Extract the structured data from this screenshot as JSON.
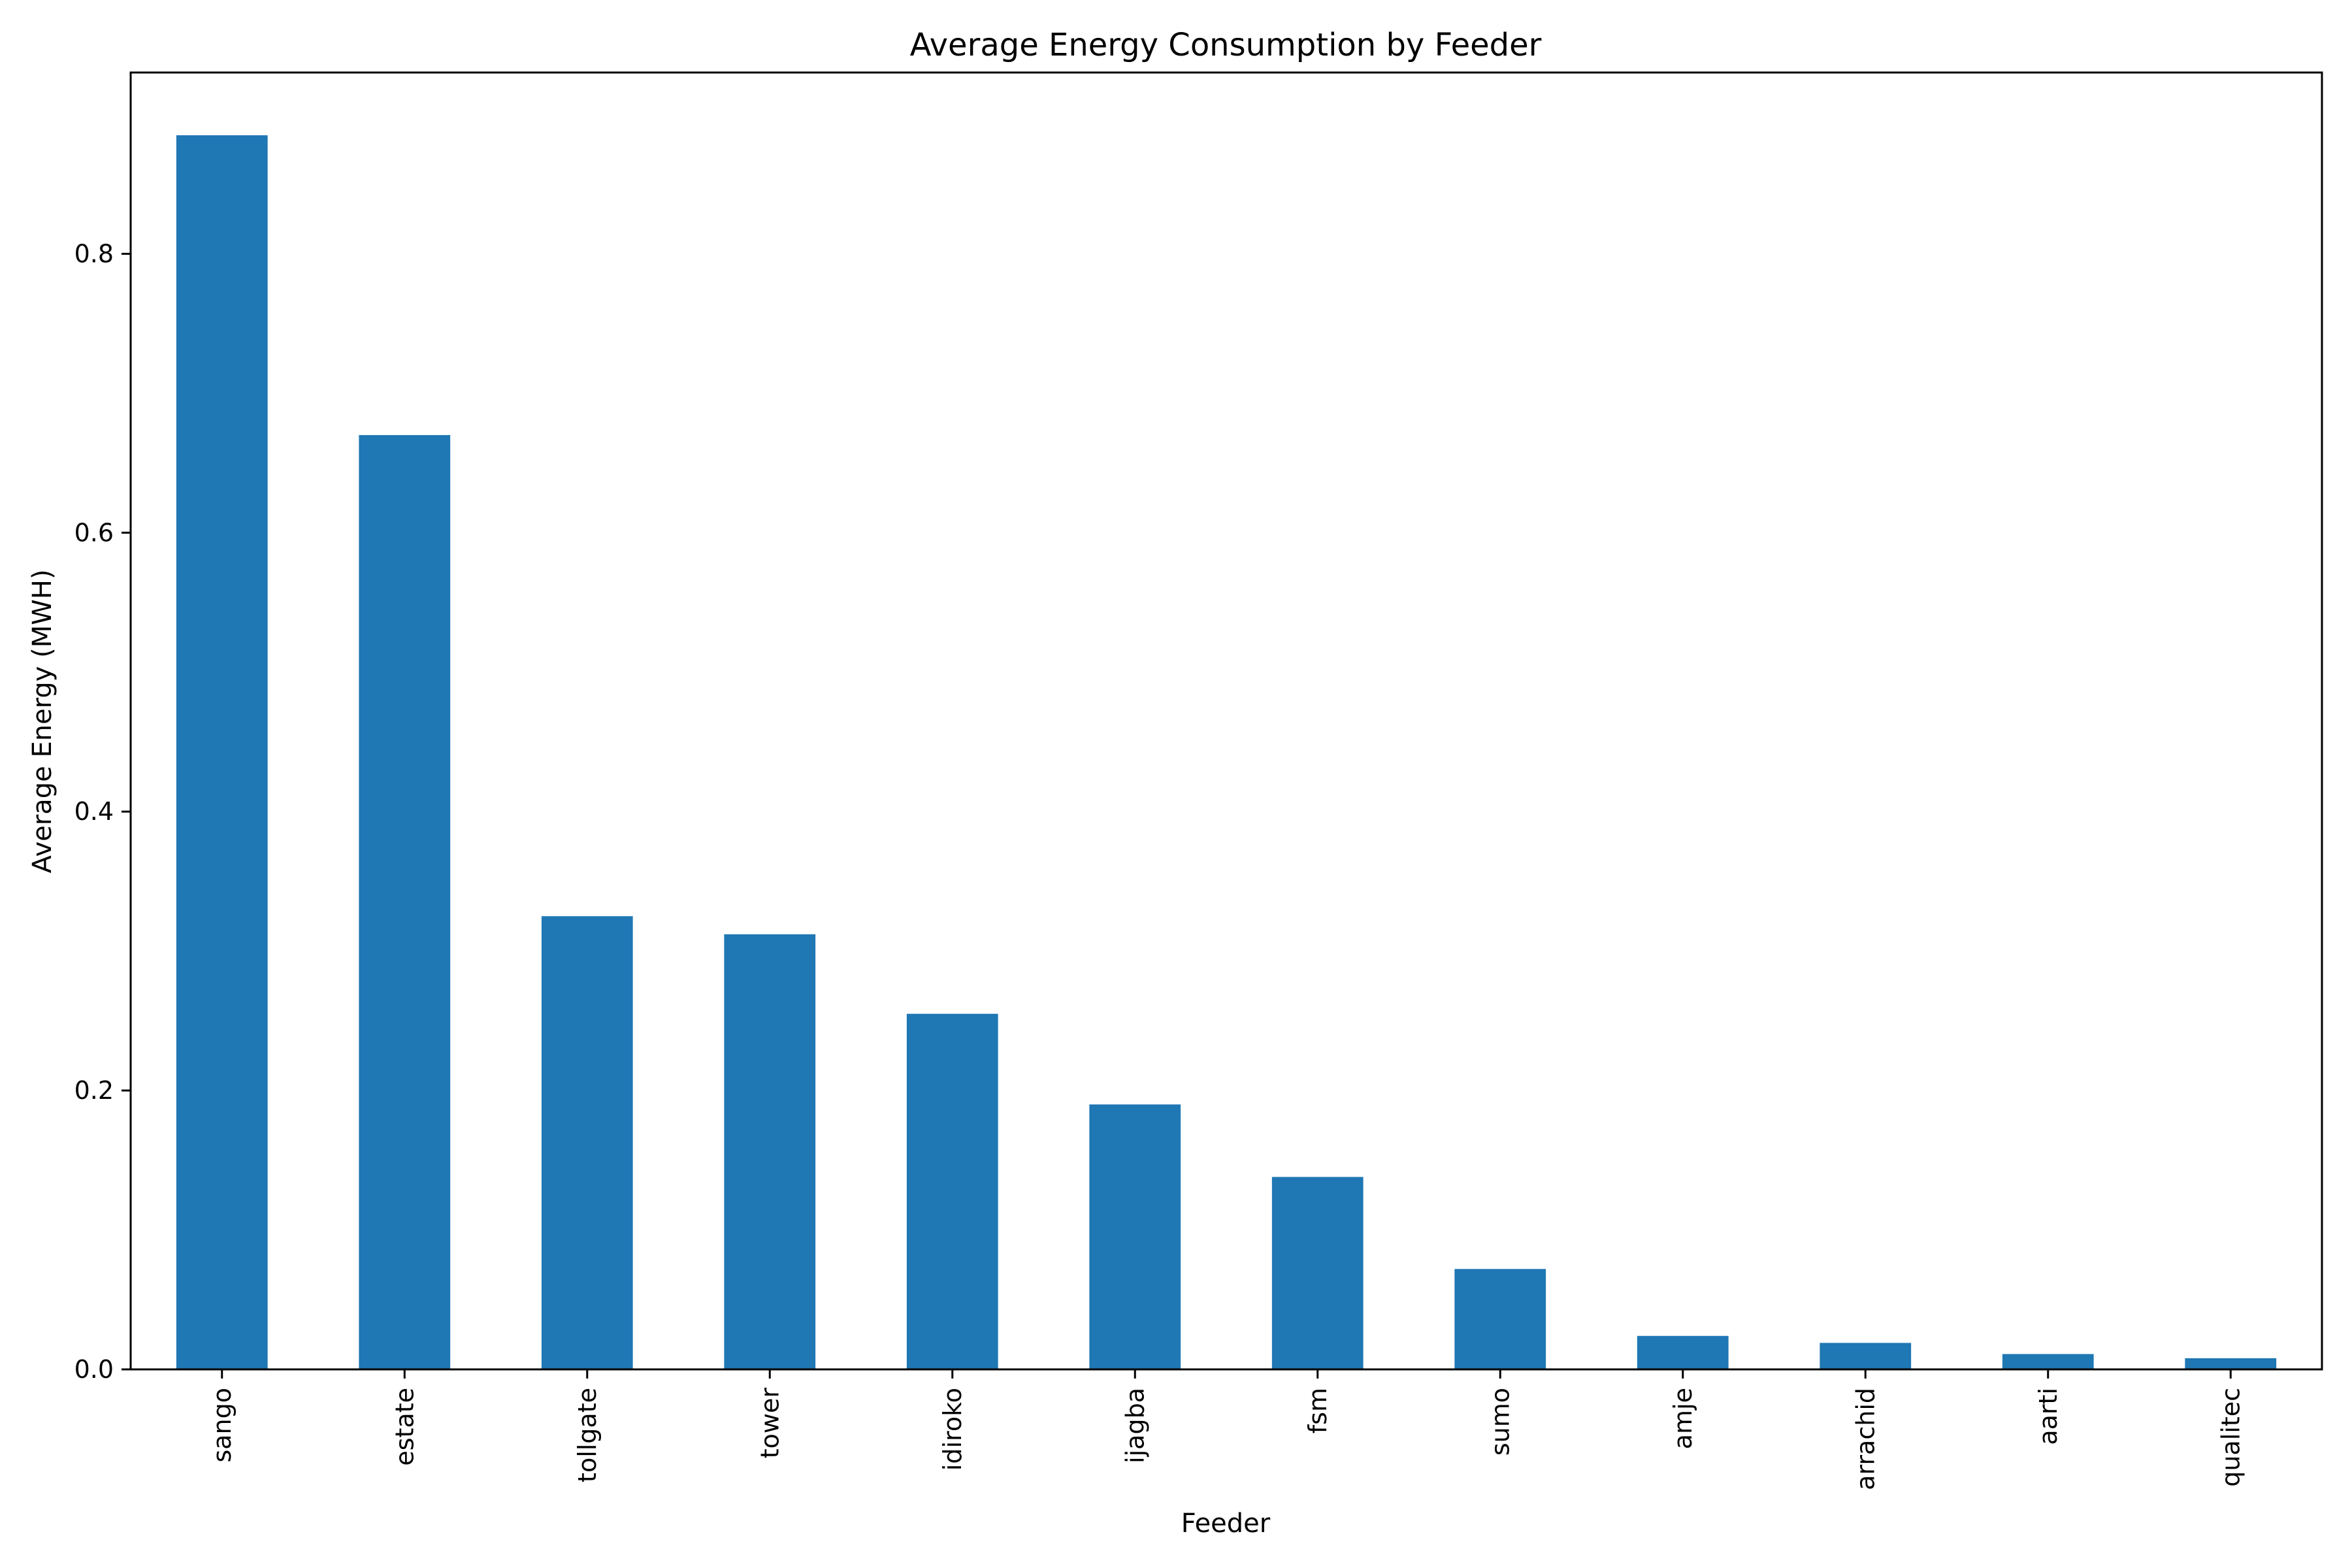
{
  "chart_data": {
    "type": "bar",
    "title": "Average Energy Consumption by Feeder",
    "xlabel": "Feeder",
    "ylabel": "Average Energy (MWH)",
    "categories": [
      "sango",
      "estate",
      "tollgate",
      "tower",
      "idiroko",
      "ijagba",
      "fsm",
      "sumo",
      "amje",
      "arrachid",
      "aarti",
      "qualitec"
    ],
    "values": [
      0.885,
      0.67,
      0.325,
      0.312,
      0.255,
      0.19,
      0.138,
      0.072,
      0.024,
      0.019,
      0.011,
      0.008
    ],
    "ylim": [
      0,
      0.93
    ],
    "yticks": [
      0.0,
      0.2,
      0.4,
      0.6,
      0.8
    ],
    "ytick_labels": [
      "0.0",
      "0.2",
      "0.4",
      "0.6",
      "0.8"
    ],
    "bar_color": "#1f77b4",
    "grid": false,
    "legend": "none"
  }
}
